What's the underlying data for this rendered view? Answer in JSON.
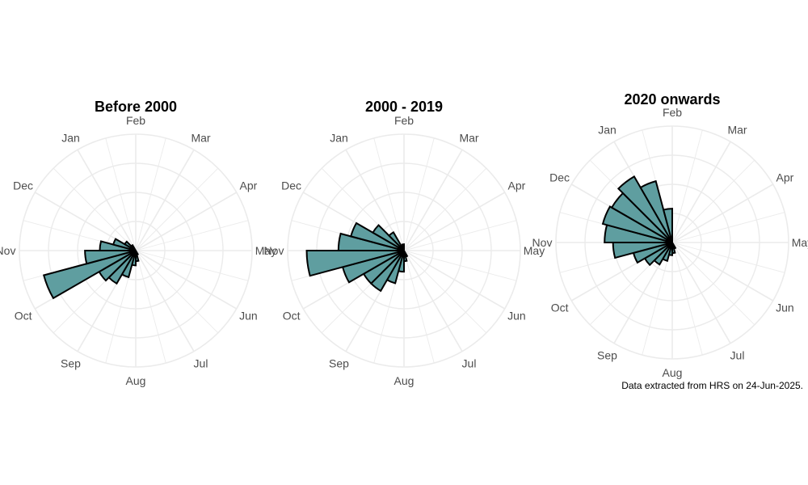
{
  "chart_data": [
    {
      "type": "polar-bar",
      "title": "Before 2000",
      "categories": [
        "Jan",
        "Feb",
        "Mar",
        "Apr",
        "May",
        "Jun",
        "Jul",
        "Aug",
        "Sep",
        "Oct",
        "Nov",
        "Dec"
      ],
      "bins_per_month": 2,
      "bins": [
        {
          "month": "Jul",
          "half": 1,
          "value": 0.02
        },
        {
          "month": "Jul",
          "half": 2,
          "value": 0.05
        },
        {
          "month": "Aug",
          "half": 1,
          "value": 0.07
        },
        {
          "month": "Aug",
          "half": 2,
          "value": 0.13
        },
        {
          "month": "Sep",
          "half": 1,
          "value": 0.18
        },
        {
          "month": "Sep",
          "half": 2,
          "value": 0.2
        },
        {
          "month": "Oct",
          "half": 1,
          "value": 0.45
        },
        {
          "month": "Oct",
          "half": 2,
          "value": 0.24
        },
        {
          "month": "Nov",
          "half": 1,
          "value": 0.17
        },
        {
          "month": "Nov",
          "half": 2,
          "value": 0.11
        },
        {
          "month": "Dec",
          "half": 1,
          "value": 0.06
        },
        {
          "month": "Dec",
          "half": 2,
          "value": 0.03
        }
      ],
      "max_radius_value": 0.55
    },
    {
      "type": "polar-bar",
      "title": "2000 - 2019",
      "categories": [
        "Jan",
        "Feb",
        "Mar",
        "Apr",
        "May",
        "Jun",
        "Jul",
        "Aug",
        "Sep",
        "Oct",
        "Nov",
        "Dec"
      ],
      "bins_per_month": 2,
      "bins": [
        {
          "month": "Jan",
          "half": 2,
          "value": 0.03
        },
        {
          "month": "Jul",
          "half": 1,
          "value": 0.03
        },
        {
          "month": "Jul",
          "half": 2,
          "value": 0.05
        },
        {
          "month": "Aug",
          "half": 1,
          "value": 0.1
        },
        {
          "month": "Aug",
          "half": 2,
          "value": 0.16
        },
        {
          "month": "Sep",
          "half": 1,
          "value": 0.22
        },
        {
          "month": "Sep",
          "half": 2,
          "value": 0.22
        },
        {
          "month": "Oct",
          "half": 1,
          "value": 0.3
        },
        {
          "month": "Oct",
          "half": 2,
          "value": 0.46
        },
        {
          "month": "Nov",
          "half": 1,
          "value": 0.31
        },
        {
          "month": "Nov",
          "half": 2,
          "value": 0.26
        },
        {
          "month": "Dec",
          "half": 1,
          "value": 0.17
        },
        {
          "month": "Dec",
          "half": 2,
          "value": 0.1
        }
      ],
      "max_radius_value": 0.55
    },
    {
      "type": "polar-bar",
      "title": "2020 onwards",
      "categories": [
        "Jan",
        "Feb",
        "Mar",
        "Apr",
        "May",
        "Jun",
        "Jul",
        "Aug",
        "Sep",
        "Oct",
        "Nov",
        "Dec"
      ],
      "bins_per_month": 2,
      "bins": [
        {
          "month": "Jul",
          "half": 1,
          "value": 0.03
        },
        {
          "month": "Jul",
          "half": 2,
          "value": 0.05
        },
        {
          "month": "Aug",
          "half": 1,
          "value": 0.06
        },
        {
          "month": "Aug",
          "half": 2,
          "value": 0.09
        },
        {
          "month": "Sep",
          "half": 1,
          "value": 0.12
        },
        {
          "month": "Sep",
          "half": 2,
          "value": 0.15
        },
        {
          "month": "Oct",
          "half": 1,
          "value": 0.19
        },
        {
          "month": "Oct",
          "half": 2,
          "value": 0.28
        },
        {
          "month": "Nov",
          "half": 1,
          "value": 0.32
        },
        {
          "month": "Nov",
          "half": 2,
          "value": 0.34
        },
        {
          "month": "Dec",
          "half": 1,
          "value": 0.33
        },
        {
          "month": "Dec",
          "half": 2,
          "value": 0.36
        },
        {
          "month": "Jan",
          "half": 1,
          "value": 0.3
        },
        {
          "month": "Jan",
          "half": 2,
          "value": 0.16
        }
      ],
      "max_radius_value": 0.55
    }
  ],
  "style": {
    "bar_fill": "#5f9ea0",
    "bar_stroke": "#000000",
    "grid_color": "#ebebeb",
    "label_color": "#4d4d4d"
  },
  "caption": "Data extracted from HRS on 24-Jun-2025."
}
